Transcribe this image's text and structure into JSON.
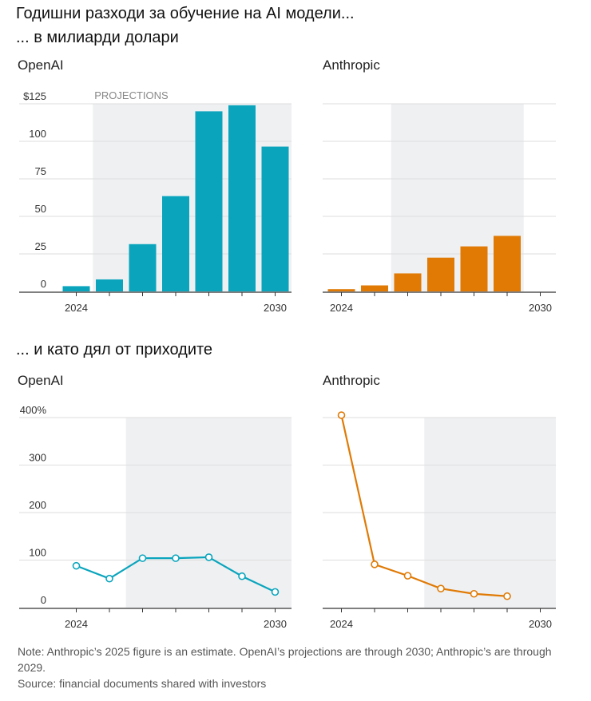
{
  "titles": {
    "line1": "Годишни разходи за обучение на AI модели...",
    "line2": "... в милиарди долари",
    "line3": "... и като дял от приходите"
  },
  "projection_label": "PROJECTIONS",
  "colors": {
    "openai": "#0aa5bd",
    "anthropic": "#e07a05",
    "projection_band": "#eff0f2",
    "grid": "#dedede",
    "axis": "#333333"
  },
  "chart_data": [
    {
      "id": "openai-spend",
      "type": "bar",
      "title": "OpenAI",
      "unit": "billions USD",
      "x": [
        2023,
        2024,
        2025,
        2026,
        2027,
        2028,
        2029,
        2030
      ],
      "values": [
        null,
        3.5,
        8,
        31.5,
        63.5,
        120,
        124,
        96.5
      ],
      "ylim": [
        0,
        125
      ],
      "yticks": [
        0,
        25,
        50,
        75,
        100,
        125
      ],
      "ytick_labels": [
        "0",
        "25",
        "50",
        "75",
        "100",
        "$125"
      ],
      "xtick_labels": [
        {
          "x": 2024,
          "label": "2024"
        },
        {
          "x": 2030,
          "label": "2030"
        }
      ],
      "projection_range": [
        2025,
        2030
      ],
      "color": "#0aa5bd",
      "grid": true
    },
    {
      "id": "anthropic-spend",
      "type": "bar",
      "title": "Anthropic",
      "unit": "billions USD",
      "x": [
        2023,
        2024,
        2025,
        2026,
        2027,
        2028,
        2029,
        2030
      ],
      "values": [
        null,
        1.5,
        4,
        12,
        22.5,
        30,
        37,
        null
      ],
      "ylim": [
        0,
        125
      ],
      "yticks": [
        0,
        25,
        50,
        75,
        100,
        125
      ],
      "ytick_labels": [],
      "xtick_labels": [
        {
          "x": 2024,
          "label": "2024"
        },
        {
          "x": 2030,
          "label": "2030"
        }
      ],
      "projection_range": [
        2026,
        2029
      ],
      "color": "#e07a05",
      "grid": true
    },
    {
      "id": "openai-share",
      "type": "line",
      "title": "OpenAI",
      "unit": "% of revenue",
      "x": [
        2024,
        2025,
        2026,
        2027,
        2028,
        2029,
        2030
      ],
      "values": [
        88,
        61,
        104,
        104,
        106,
        66,
        33
      ],
      "ylim": [
        0,
        400
      ],
      "yticks": [
        0,
        100,
        200,
        300,
        400
      ],
      "ytick_labels": [
        "0",
        "100",
        "200",
        "300",
        "400%"
      ],
      "xtick_labels": [
        {
          "x": 2024,
          "label": "2024"
        },
        {
          "x": 2030,
          "label": "2030"
        }
      ],
      "projection_range": [
        2025.5,
        2030.5
      ],
      "color": "#0aa5bd",
      "grid": true
    },
    {
      "id": "anthropic-share",
      "type": "line",
      "title": "Anthropic",
      "unit": "% of revenue",
      "x": [
        2024,
        2025,
        2026,
        2027,
        2028,
        2029
      ],
      "values": [
        405,
        91,
        67,
        40,
        29,
        24
      ],
      "ylim": [
        0,
        400
      ],
      "yticks": [
        0,
        100,
        200,
        300,
        400
      ],
      "ytick_labels": [],
      "xtick_labels": [
        {
          "x": 2024,
          "label": "2024"
        },
        {
          "x": 2030,
          "label": "2030"
        }
      ],
      "projection_range": [
        2026.5,
        2030.5
      ],
      "color": "#e07a05",
      "grid": true
    }
  ],
  "footer": {
    "note": "Note: Anthropic’s 2025 figure is an estimate. OpenAI’s projections are through 2030; Anthropic’s are through 2029.",
    "source": "Source: financial documents shared with investors"
  }
}
